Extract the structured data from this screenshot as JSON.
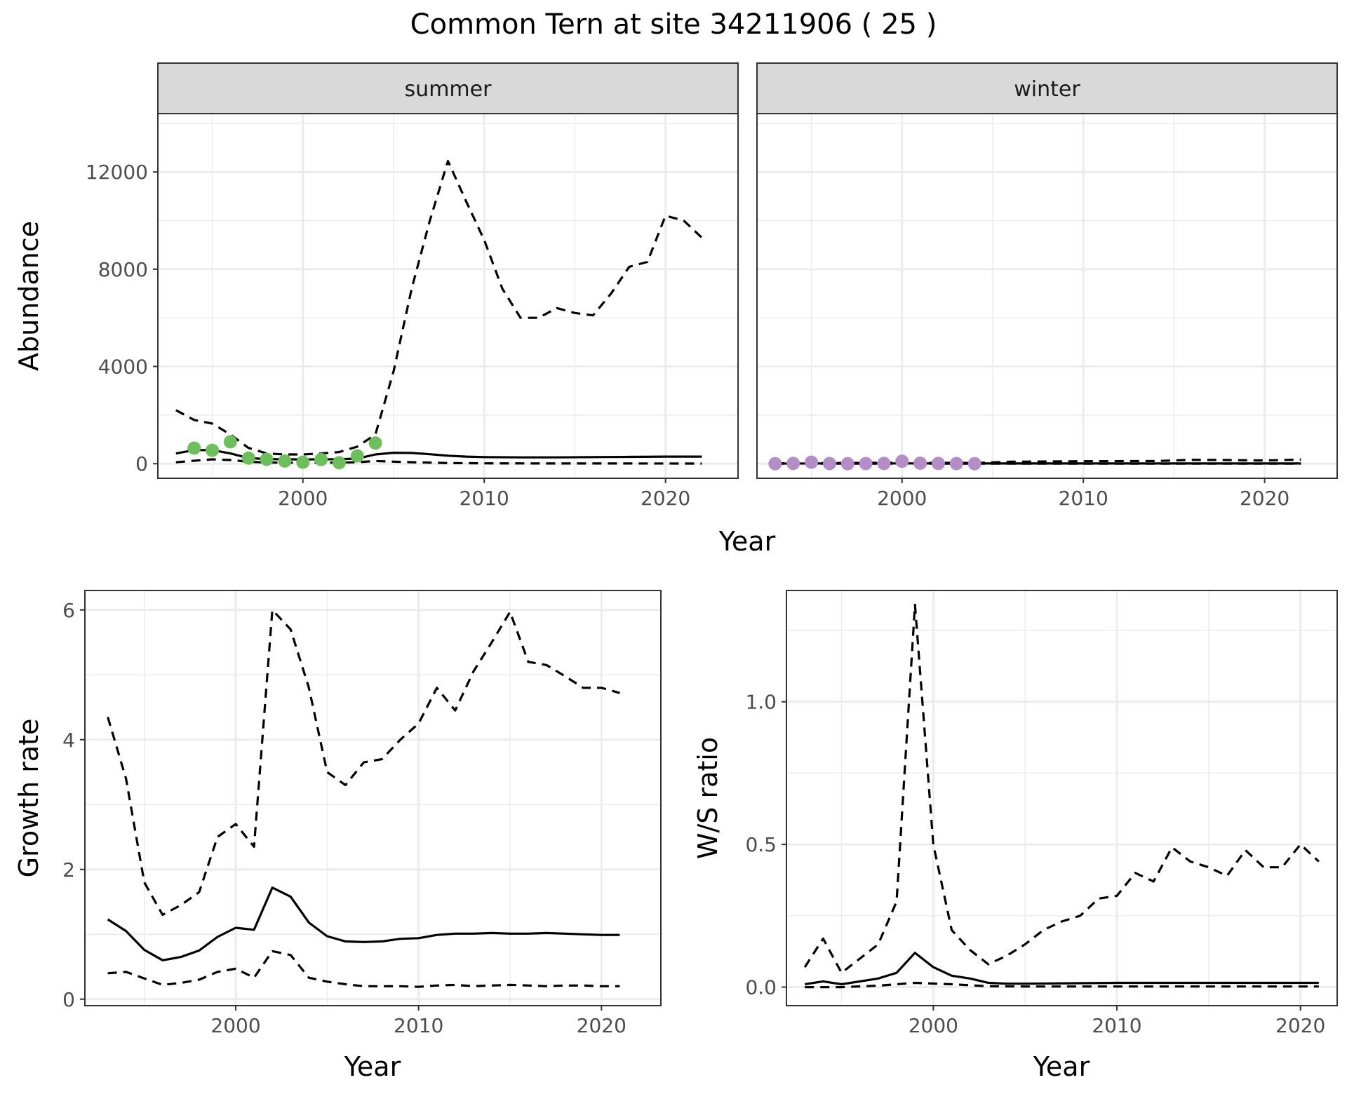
{
  "title": "Common Tern at site 34211906 ( 25 )",
  "colors": {
    "summer_points": "#6dbf5b",
    "winter_points": "#b48cc6",
    "line": "#000000",
    "strip_fill": "#d9d9d9",
    "grid": "#ebebeb"
  },
  "chart_data": [
    {
      "type": "line",
      "id": "abundance",
      "facets": [
        "summer",
        "winter"
      ],
      "xlabel": "Year",
      "ylabel": "Abundance",
      "xlim": [
        1992,
        2024
      ],
      "ylim": [
        -600,
        14400
      ],
      "xticks": [
        2000,
        2010,
        2020
      ],
      "yticks": [
        0,
        4000,
        8000,
        12000
      ],
      "grid": true,
      "panels": {
        "summer": {
          "estimate": {
            "x": [
              1993,
              1994,
              1995,
              1996,
              1997,
              1998,
              1999,
              2000,
              2001,
              2002,
              2003,
              2004,
              2005,
              2006,
              2007,
              2008,
              2009,
              2010,
              2012,
              2014,
              2016,
              2018,
              2020,
              2022
            ],
            "y": [
              420,
              560,
              560,
              420,
              230,
              190,
              180,
              175,
              180,
              185,
              210,
              380,
              450,
              440,
              390,
              330,
              290,
              270,
              260,
              260,
              270,
              280,
              290,
              290
            ]
          },
          "upper": {
            "x": [
              1993,
              1994,
              1995,
              1996,
              1997,
              1998,
              1999,
              2000,
              2001,
              2002,
              2003,
              2004,
              2005,
              2006,
              2007,
              2008,
              2009,
              2010,
              2011,
              2012,
              2013,
              2014,
              2015,
              2016,
              2017,
              2018,
              2019,
              2020,
              2021,
              2022
            ],
            "y": [
              2200,
              1800,
              1650,
              1200,
              650,
              420,
              380,
              380,
              420,
              480,
              700,
              1200,
              3800,
              7200,
              10000,
              12450,
              10800,
              9200,
              7200,
              6000,
              6000,
              6400,
              6200,
              6100,
              7000,
              8100,
              8300,
              10200,
              10000,
              9300
            ]
          },
          "lower": {
            "x": [
              1993,
              1994,
              1995,
              1996,
              1997,
              1998,
              1999,
              2000,
              2001,
              2002,
              2003,
              2004,
              2006,
              2008,
              2010,
              2014,
              2018,
              2022
            ],
            "y": [
              60,
              120,
              180,
              150,
              80,
              50,
              40,
              40,
              40,
              45,
              60,
              110,
              60,
              25,
              15,
              10,
              8,
              5
            ]
          },
          "observed": {
            "x": [
              1994,
              1995,
              1996,
              1997,
              1998,
              1999,
              2000,
              2001,
              2002,
              2003,
              2004
            ],
            "y": [
              640,
              550,
              900,
              230,
              180,
              110,
              60,
              170,
              40,
              320,
              850
            ]
          }
        },
        "winter": {
          "estimate": {
            "x": [
              1993,
              1996,
              2000,
              2004,
              2008,
              2012,
              2016,
              2020,
              2022
            ],
            "y": [
              5,
              8,
              12,
              10,
              10,
              10,
              10,
              10,
              10
            ]
          },
          "upper": {
            "x": [
              1993,
              1996,
              2000,
              2004,
              2006,
              2010,
              2014,
              2016,
              2018,
              2020,
              2022
            ],
            "y": [
              15,
              25,
              40,
              30,
              80,
              100,
              110,
              160,
              150,
              130,
              170
            ]
          },
          "lower": {
            "x": [
              1993,
              2000,
              2010,
              2022
            ],
            "y": [
              0,
              0,
              0,
              0
            ]
          },
          "observed": {
            "x": [
              1993,
              1994,
              1995,
              1996,
              1997,
              1998,
              1999,
              2000,
              2001,
              2002,
              2003,
              2004
            ],
            "y": [
              0,
              10,
              60,
              5,
              0,
              5,
              10,
              100,
              20,
              10,
              5,
              0
            ]
          }
        }
      }
    },
    {
      "type": "line",
      "id": "growth",
      "xlabel": "Year",
      "ylabel": "Growth rate",
      "xlim": [
        1991.75,
        2023.25
      ],
      "ylim": [
        -0.1,
        6.3
      ],
      "xticks": [
        2000,
        2010,
        2020
      ],
      "yticks": [
        0,
        2,
        4,
        6
      ],
      "grid": true,
      "estimate": {
        "x": [
          1993,
          1994,
          1995,
          1996,
          1997,
          1998,
          1999,
          2000,
          2001,
          2002,
          2003,
          2004,
          2005,
          2006,
          2007,
          2008,
          2009,
          2010,
          2011,
          2012,
          2013,
          2014,
          2015,
          2016,
          2017,
          2018,
          2019,
          2020,
          2021
        ],
        "y": [
          1.23,
          1.05,
          0.76,
          0.6,
          0.65,
          0.75,
          0.96,
          1.1,
          1.07,
          1.72,
          1.58,
          1.18,
          0.97,
          0.89,
          0.88,
          0.89,
          0.93,
          0.94,
          0.99,
          1.01,
          1.01,
          1.02,
          1.01,
          1.01,
          1.02,
          1.01,
          1.0,
          0.99,
          0.99
        ]
      },
      "upper": {
        "x": [
          1993,
          1994,
          1995,
          1996,
          1997,
          1998,
          1999,
          2000,
          2001,
          2002,
          2003,
          2004,
          2005,
          2006,
          2007,
          2008,
          2009,
          2010,
          2011,
          2012,
          2013,
          2014,
          2015,
          2016,
          2017,
          2018,
          2019,
          2020,
          2021
        ],
        "y": [
          4.35,
          3.4,
          1.8,
          1.3,
          1.45,
          1.65,
          2.5,
          2.7,
          2.35,
          6.0,
          5.7,
          4.8,
          3.5,
          3.3,
          3.65,
          3.7,
          4.0,
          4.25,
          4.8,
          4.45,
          5.05,
          5.5,
          5.97,
          5.2,
          5.15,
          4.98,
          4.8,
          4.8,
          4.72
        ]
      },
      "lower": {
        "x": [
          1993,
          1994,
          1995,
          1996,
          1997,
          1998,
          1999,
          2000,
          2001,
          2002,
          2003,
          2004,
          2005,
          2006,
          2007,
          2008,
          2009,
          2010,
          2011,
          2012,
          2013,
          2014,
          2015,
          2016,
          2017,
          2018,
          2019,
          2020,
          2021
        ],
        "y": [
          0.4,
          0.42,
          0.32,
          0.22,
          0.25,
          0.3,
          0.42,
          0.47,
          0.33,
          0.74,
          0.68,
          0.33,
          0.27,
          0.23,
          0.2,
          0.2,
          0.2,
          0.19,
          0.21,
          0.22,
          0.2,
          0.21,
          0.22,
          0.21,
          0.2,
          0.21,
          0.21,
          0.2,
          0.2
        ]
      }
    },
    {
      "type": "line",
      "id": "ratio",
      "xlabel": "Year",
      "ylabel": "W/S ratio",
      "xlim": [
        1992,
        2022
      ],
      "ylim": [
        -0.065,
        1.39
      ],
      "xticks": [
        2000,
        2010,
        2020
      ],
      "yticks": [
        0.0,
        0.5,
        1.0
      ],
      "ytick_labels": [
        "0.0",
        "0.5",
        "1.0"
      ],
      "grid": true,
      "estimate": {
        "x": [
          1993,
          1994,
          1995,
          1996,
          1997,
          1998,
          1999,
          2000,
          2001,
          2002,
          2003,
          2004,
          2005,
          2010,
          2015,
          2021
        ],
        "y": [
          0.01,
          0.02,
          0.01,
          0.02,
          0.03,
          0.05,
          0.12,
          0.07,
          0.04,
          0.03,
          0.015,
          0.012,
          0.012,
          0.015,
          0.015,
          0.015
        ]
      },
      "upper": {
        "x": [
          1993,
          1994,
          1995,
          1996,
          1997,
          1998,
          1999,
          2000,
          2001,
          2002,
          2003,
          2004,
          2005,
          2006,
          2007,
          2008,
          2009,
          2010,
          2011,
          2012,
          2013,
          2014,
          2015,
          2016,
          2017,
          2018,
          2019,
          2020,
          2021
        ],
        "y": [
          0.07,
          0.17,
          0.05,
          0.1,
          0.15,
          0.3,
          1.34,
          0.5,
          0.2,
          0.13,
          0.08,
          0.11,
          0.15,
          0.2,
          0.23,
          0.25,
          0.31,
          0.32,
          0.4,
          0.37,
          0.49,
          0.44,
          0.42,
          0.39,
          0.48,
          0.42,
          0.42,
          0.5,
          0.44
        ]
      },
      "lower": {
        "x": [
          1993,
          1995,
          1997,
          1999,
          2001,
          2003,
          2005,
          2010,
          2015,
          2021
        ],
        "y": [
          0.0,
          0.0,
          0.005,
          0.015,
          0.01,
          0.003,
          0.002,
          0.002,
          0.002,
          0.002
        ]
      }
    }
  ]
}
